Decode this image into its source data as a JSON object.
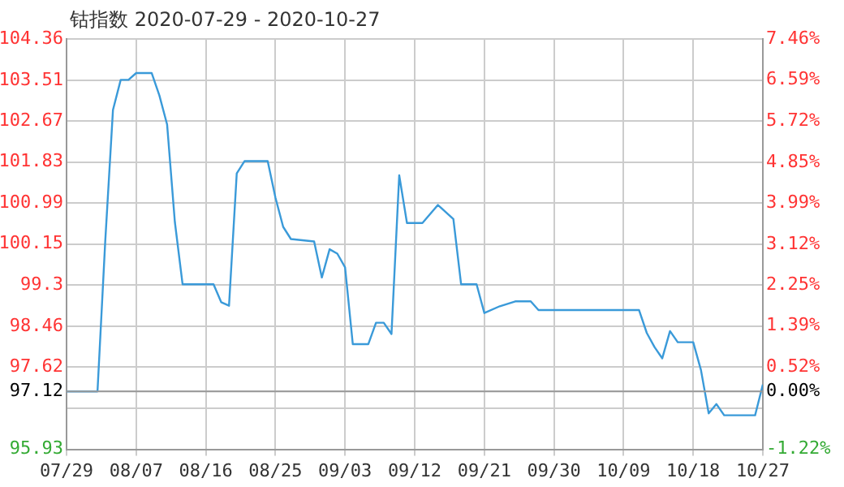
{
  "chart_data": {
    "type": "line",
    "title": "钴指数 2020-07-29 - 2020-10-27",
    "x": [
      "2020-07-29",
      "2020-08-02",
      "2020-08-03",
      "2020-08-04",
      "2020-08-05",
      "2020-08-06",
      "2020-08-07",
      "2020-08-09",
      "2020-08-10",
      "2020-08-11",
      "2020-08-12",
      "2020-08-13",
      "2020-08-17",
      "2020-08-18",
      "2020-08-19",
      "2020-08-20",
      "2020-08-21",
      "2020-08-24",
      "2020-08-25",
      "2020-08-26",
      "2020-08-27",
      "2020-08-30",
      "2020-08-31",
      "2020-09-01",
      "2020-09-02",
      "2020-09-03",
      "2020-09-04",
      "2020-09-06",
      "2020-09-07",
      "2020-09-08",
      "2020-09-09",
      "2020-09-10",
      "2020-09-11",
      "2020-09-13",
      "2020-09-15",
      "2020-09-17",
      "2020-09-18",
      "2020-09-20",
      "2020-09-21",
      "2020-09-23",
      "2020-09-25",
      "2020-09-27",
      "2020-09-28",
      "2020-10-11",
      "2020-10-12",
      "2020-10-13",
      "2020-10-14",
      "2020-10-15",
      "2020-10-16",
      "2020-10-18",
      "2020-10-19",
      "2020-10-20",
      "2020-10-21",
      "2020-10-22",
      "2020-10-26",
      "2020-10-27"
    ],
    "series": [
      {
        "color": "#3a9ad9",
        "values": [
          97.12,
          97.12,
          100.2,
          102.9,
          103.52,
          103.52,
          103.66,
          103.66,
          103.2,
          102.6,
          100.6,
          99.32,
          99.32,
          98.95,
          98.88,
          101.6,
          101.85,
          101.85,
          101.1,
          100.5,
          100.25,
          100.2,
          99.46,
          100.04,
          99.95,
          99.67,
          98.09,
          98.09,
          98.53,
          98.53,
          98.3,
          101.56,
          100.58,
          100.58,
          100.95,
          100.66,
          99.32,
          99.32,
          98.73,
          98.87,
          98.97,
          98.97,
          98.79,
          98.79,
          98.32,
          98.03,
          97.8,
          98.36,
          98.13,
          98.13,
          97.56,
          96.67,
          96.86,
          96.63,
          96.63,
          97.26
        ]
      }
    ],
    "xlim": [
      "2020-07-29",
      "2020-10-27"
    ],
    "xticks": [
      {
        "value": "2020-07-29",
        "label": "07/29"
      },
      {
        "value": "2020-08-07",
        "label": "08/07"
      },
      {
        "value": "2020-08-16",
        "label": "08/16"
      },
      {
        "value": "2020-08-25",
        "label": "08/25"
      },
      {
        "value": "2020-09-03",
        "label": "09/03"
      },
      {
        "value": "2020-09-12",
        "label": "09/12"
      },
      {
        "value": "2020-09-21",
        "label": "09/21"
      },
      {
        "value": "2020-09-30",
        "label": "09/30"
      },
      {
        "value": "2020-10-09",
        "label": "10/09"
      },
      {
        "value": "2020-10-18",
        "label": "10/18"
      },
      {
        "value": "2020-10-27",
        "label": "10/27"
      }
    ],
    "ylim": [
      95.93,
      104.36
    ],
    "yticks": [
      95.93,
      {
        "value": 96.78,
        "label": null
      },
      97.12,
      97.62,
      98.46,
      99.3,
      100.15,
      100.99,
      101.83,
      102.67,
      103.51,
      104.36
    ],
    "y2lim": [
      -1.22,
      7.46
    ],
    "y2ticks": [
      {
        "value": -1.22,
        "label": "-1.22%"
      },
      {
        "value": 0,
        "label": "0.00%"
      },
      {
        "value": 0.52,
        "label": "0.52%"
      },
      {
        "value": 1.39,
        "label": "1.39%"
      },
      {
        "value": 2.25,
        "label": "2.25%"
      },
      {
        "value": 3.12,
        "label": "3.12%"
      },
      {
        "value": 3.99,
        "label": "3.99%"
      },
      {
        "value": 4.85,
        "label": "4.85%"
      },
      {
        "value": 5.72,
        "label": "5.72%"
      },
      {
        "value": 6.59,
        "label": "6.59%"
      },
      {
        "value": 7.46,
        "label": "7.46%"
      }
    ],
    "ref_lines": [
      {
        "axis": "y",
        "value": 97.12,
        "color": "#999999"
      }
    ],
    "grid": true,
    "legend": false,
    "marker": "none",
    "line_style": "solid"
  }
}
